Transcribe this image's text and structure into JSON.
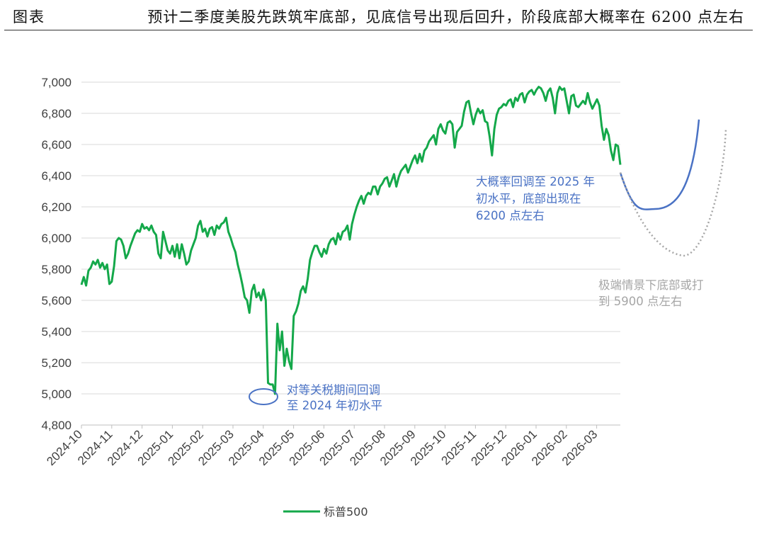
{
  "header": {
    "label": "图表",
    "title": "预计二季度美股先跌筑牢底部，见底信号出现后回升，阶段底部大概率在 6200 点左右"
  },
  "chart_data": {
    "type": "line",
    "ylim": [
      4800,
      7000
    ],
    "yticks": [
      "7,000",
      "6,800",
      "6,600",
      "6,400",
      "6,200",
      "6,000",
      "5,800",
      "5,600",
      "5,400",
      "5,200",
      "5,000",
      "4,800"
    ],
    "yticks_values": [
      7000,
      6800,
      6600,
      6400,
      6200,
      6000,
      5800,
      5600,
      5400,
      5200,
      5000,
      4800
    ],
    "xticks": [
      "2024-10",
      "2024-11",
      "2024-12",
      "2025-01",
      "2025-02",
      "2025-03",
      "2025-04",
      "2025-05",
      "2025-06",
      "2025-07",
      "2025-08",
      "2025-09",
      "2025-10",
      "2025-11",
      "2025-12",
      "2026-01",
      "2026-02",
      "2026-03"
    ],
    "grid": true,
    "legend": {
      "position": "bottom",
      "entries": [
        "标普500"
      ]
    },
    "colors": {
      "series": "#14a84a",
      "projection": "#4a72c4",
      "extreme": "#a6a6a6",
      "annotation_blue": "#4a72c4",
      "annotation_grey": "#a6a6a6"
    },
    "series": [
      {
        "name": "标普500",
        "x_start": "2024-10-01",
        "x_step_days": 3.5,
        "values": [
          5700,
          5750,
          5695,
          5790,
          5810,
          5850,
          5830,
          5860,
          5810,
          5840,
          5800,
          5830,
          5705,
          5720,
          5820,
          5980,
          6000,
          5990,
          5950,
          5870,
          5900,
          5950,
          5990,
          6030,
          6050,
          6040,
          6090,
          6060,
          6070,
          6050,
          6080,
          6040,
          6020,
          5900,
          5870,
          6040,
          5980,
          5920,
          5900,
          5950,
          5880,
          5960,
          5870,
          5960,
          5900,
          5830,
          5850,
          5920,
          5960,
          6000,
          6080,
          6110,
          6040,
          6060,
          6010,
          6060,
          6070,
          6020,
          6080,
          6060,
          6090,
          6100,
          6130,
          6040,
          6000,
          5950,
          5910,
          5830,
          5770,
          5700,
          5620,
          5600,
          5520,
          5660,
          5700,
          5620,
          5650,
          5600,
          5670,
          5600,
          5070,
          5060,
          5060,
          5000,
          5450,
          5280,
          5400,
          5180,
          5290,
          5210,
          5160,
          5500,
          5530,
          5580,
          5660,
          5690,
          5650,
          5740,
          5860,
          5910,
          5950,
          5950,
          5910,
          5880,
          5930,
          5900,
          5960,
          5990,
          6000,
          5960,
          6030,
          5990,
          6040,
          6050,
          6080,
          5990,
          6090,
          6150,
          6200,
          6240,
          6270,
          6220,
          6270,
          6290,
          6280,
          6330,
          6330,
          6280,
          6330,
          6350,
          6380,
          6390,
          6330,
          6370,
          6410,
          6330,
          6390,
          6430,
          6450,
          6470,
          6420,
          6460,
          6500,
          6530,
          6480,
          6540,
          6490,
          6560,
          6580,
          6620,
          6640,
          6660,
          6600,
          6700,
          6730,
          6690,
          6670,
          6740,
          6750,
          6730,
          6580,
          6680,
          6700,
          6720,
          6810,
          6870,
          6880,
          6800,
          6730,
          6790,
          6830,
          6800,
          6820,
          6750,
          6740,
          6650,
          6530,
          6700,
          6790,
          6830,
          6840,
          6860,
          6850,
          6880,
          6890,
          6840,
          6900,
          6880,
          6920,
          6930,
          6870,
          6920,
          6940,
          6950,
          6920,
          6950,
          6970,
          6960,
          6930,
          6880,
          6940,
          6960,
          6900,
          6800,
          6930,
          6970,
          6950,
          6960,
          6880,
          6800,
          6910,
          6920,
          6850,
          6840,
          6860,
          6880,
          6860,
          6930,
          6870,
          6830,
          6860,
          6890,
          6850,
          6720,
          6630,
          6700,
          6660,
          6560,
          6500,
          6600,
          6590,
          6470
        ]
      }
    ],
    "projections": [
      {
        "type": "solid-curve",
        "bottom_value": 6200,
        "start_value": 6420,
        "end_value": 6760
      },
      {
        "type": "dotted-curve",
        "bottom_value": 5900,
        "start_value": 6420,
        "end_value": 6700
      }
    ],
    "annotations": [
      {
        "text": [
          "对等关税期间回调",
          "至 2024 年初水平"
        ],
        "color": "#4a72c4"
      },
      {
        "text": [
          "大概率回调至 2025 年",
          "初水平，底部出现在",
          "6200 点左右"
        ],
        "color": "#4a72c4"
      },
      {
        "text": [
          "极端情景下底部或打",
          "到 5900 点左右"
        ],
        "color": "#a6a6a6"
      }
    ]
  }
}
